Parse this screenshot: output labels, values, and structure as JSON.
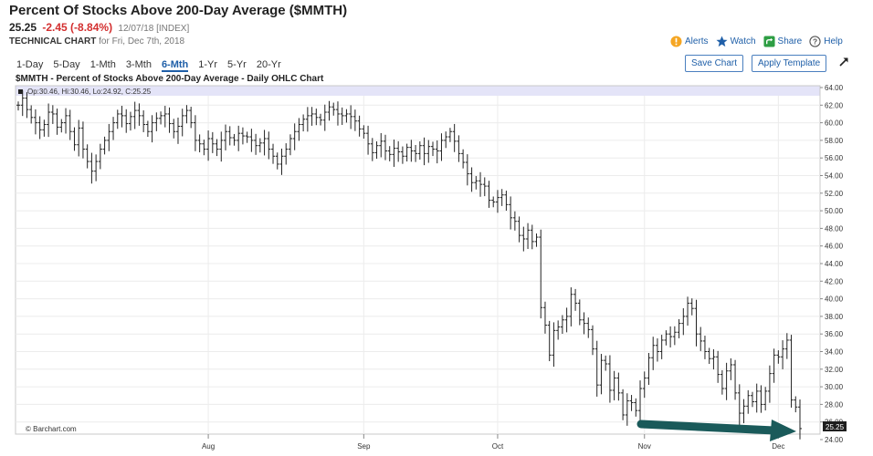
{
  "header": {
    "title": "Percent Of Stocks Above 200-Day Average ($MMTH)",
    "last": "25.25",
    "change": "-2.45 (-8.84%)",
    "meta": "12/07/18 [INDEX]",
    "chart_label": "TECHNICAL CHART",
    "chart_date": "for Fri, Dec 7th, 2018"
  },
  "actions": [
    {
      "label": "Alerts",
      "icon": "alert-icon",
      "color": "#f5a623"
    },
    {
      "label": "Watch",
      "icon": "star-icon",
      "color": "#1f5fa8"
    },
    {
      "label": "Share",
      "icon": "share-icon",
      "color": "#2e9e44"
    },
    {
      "label": "Help",
      "icon": "help-icon",
      "color": "#555555"
    }
  ],
  "ranges": [
    "1-Day",
    "5-Day",
    "1-Mth",
    "3-Mth",
    "6-Mth",
    "1-Yr",
    "5-Yr",
    "20-Yr"
  ],
  "active_range": "6-Mth",
  "buttons": {
    "save": "Save Chart",
    "template": "Apply Template"
  },
  "chart_data": {
    "type": "ohlc",
    "title": "$MMTH - Percent of Stocks Above 200-Day Average - Daily OHLC Chart",
    "legend": "Op:30.46, Hi:30.46, Lo:24.92, C:25.25",
    "watermark": "© Barchart.com",
    "y_axis": {
      "min": 24,
      "max": 64,
      "step": 2,
      "position": "right"
    },
    "x_ticks": [
      {
        "label": "Aug",
        "index": 44
      },
      {
        "label": "Sep",
        "index": 80
      },
      {
        "label": "Oct",
        "index": 111
      },
      {
        "label": "Nov",
        "index": 145
      },
      {
        "label": "Dec",
        "index": 176
      }
    ],
    "last_value": "25.25",
    "grid": true,
    "annotation": "arrow pointing to latest low",
    "accent_color": "#1a5a5a",
    "close_series": [
      62.0,
      62.8,
      61.5,
      60.6,
      60.0,
      59.2,
      59.8,
      61.2,
      61.0,
      59.5,
      60.0,
      60.8,
      59.0,
      57.5,
      59.4,
      57.0,
      55.6,
      54.5,
      55.6,
      57.0,
      58.0,
      59.0,
      60.0,
      61.0,
      60.8,
      59.9,
      60.7,
      61.4,
      60.8,
      59.8,
      59.0,
      60.0,
      60.5,
      60.8,
      61.0,
      59.9,
      59.0,
      59.6,
      60.8,
      61.4,
      60.0,
      58.0,
      57.6,
      57.0,
      58.2,
      57.6,
      57.0,
      58.0,
      59.0,
      58.3,
      58.0,
      58.8,
      58.5,
      58.4,
      58.0,
      57.4,
      57.7,
      58.2,
      57.0,
      56.2,
      55.3,
      56.2,
      57.0,
      58.2,
      59.0,
      59.8,
      60.4,
      60.8,
      61.0,
      60.6,
      60.3,
      61.2,
      61.8,
      61.5,
      61.0,
      60.8,
      61.0,
      60.7,
      60.2,
      59.3,
      58.8,
      57.6,
      56.6,
      57.4,
      57.9,
      56.8,
      56.4,
      57.1,
      56.7,
      56.2,
      57.2,
      56.8,
      56.5,
      57.4,
      56.5,
      57.3,
      57.0,
      56.8,
      58.0,
      58.4,
      59.0,
      57.9,
      56.5,
      55.5,
      54.2,
      53.2,
      53.4,
      53.0,
      52.8,
      51.2,
      51.0,
      51.5,
      51.8,
      50.7,
      49.2,
      48.8,
      47.2,
      46.8,
      47.8,
      46.5,
      47.0,
      39.0,
      37.0,
      33.6,
      36.4,
      36.8,
      37.6,
      38.0,
      40.5,
      39.5,
      37.6,
      37.2,
      36.5,
      34.3,
      30.2,
      33.0,
      32.6,
      29.6,
      31.0,
      29.3,
      26.8,
      28.4,
      28.2,
      27.3,
      29.8,
      31.0,
      33.3,
      34.7,
      34.0,
      35.3,
      36.0,
      35.7,
      36.2,
      37.2,
      38.0,
      39.5,
      38.9,
      36.0,
      35.2,
      34.0,
      33.2,
      33.4,
      31.4,
      29.8,
      31.8,
      32.5,
      29.3,
      27.0,
      27.8,
      29.0,
      28.3,
      29.5,
      28.0,
      29.5,
      31.5,
      33.6,
      33.4,
      34.3,
      35.3,
      28.5,
      27.7,
      25.25
    ]
  }
}
